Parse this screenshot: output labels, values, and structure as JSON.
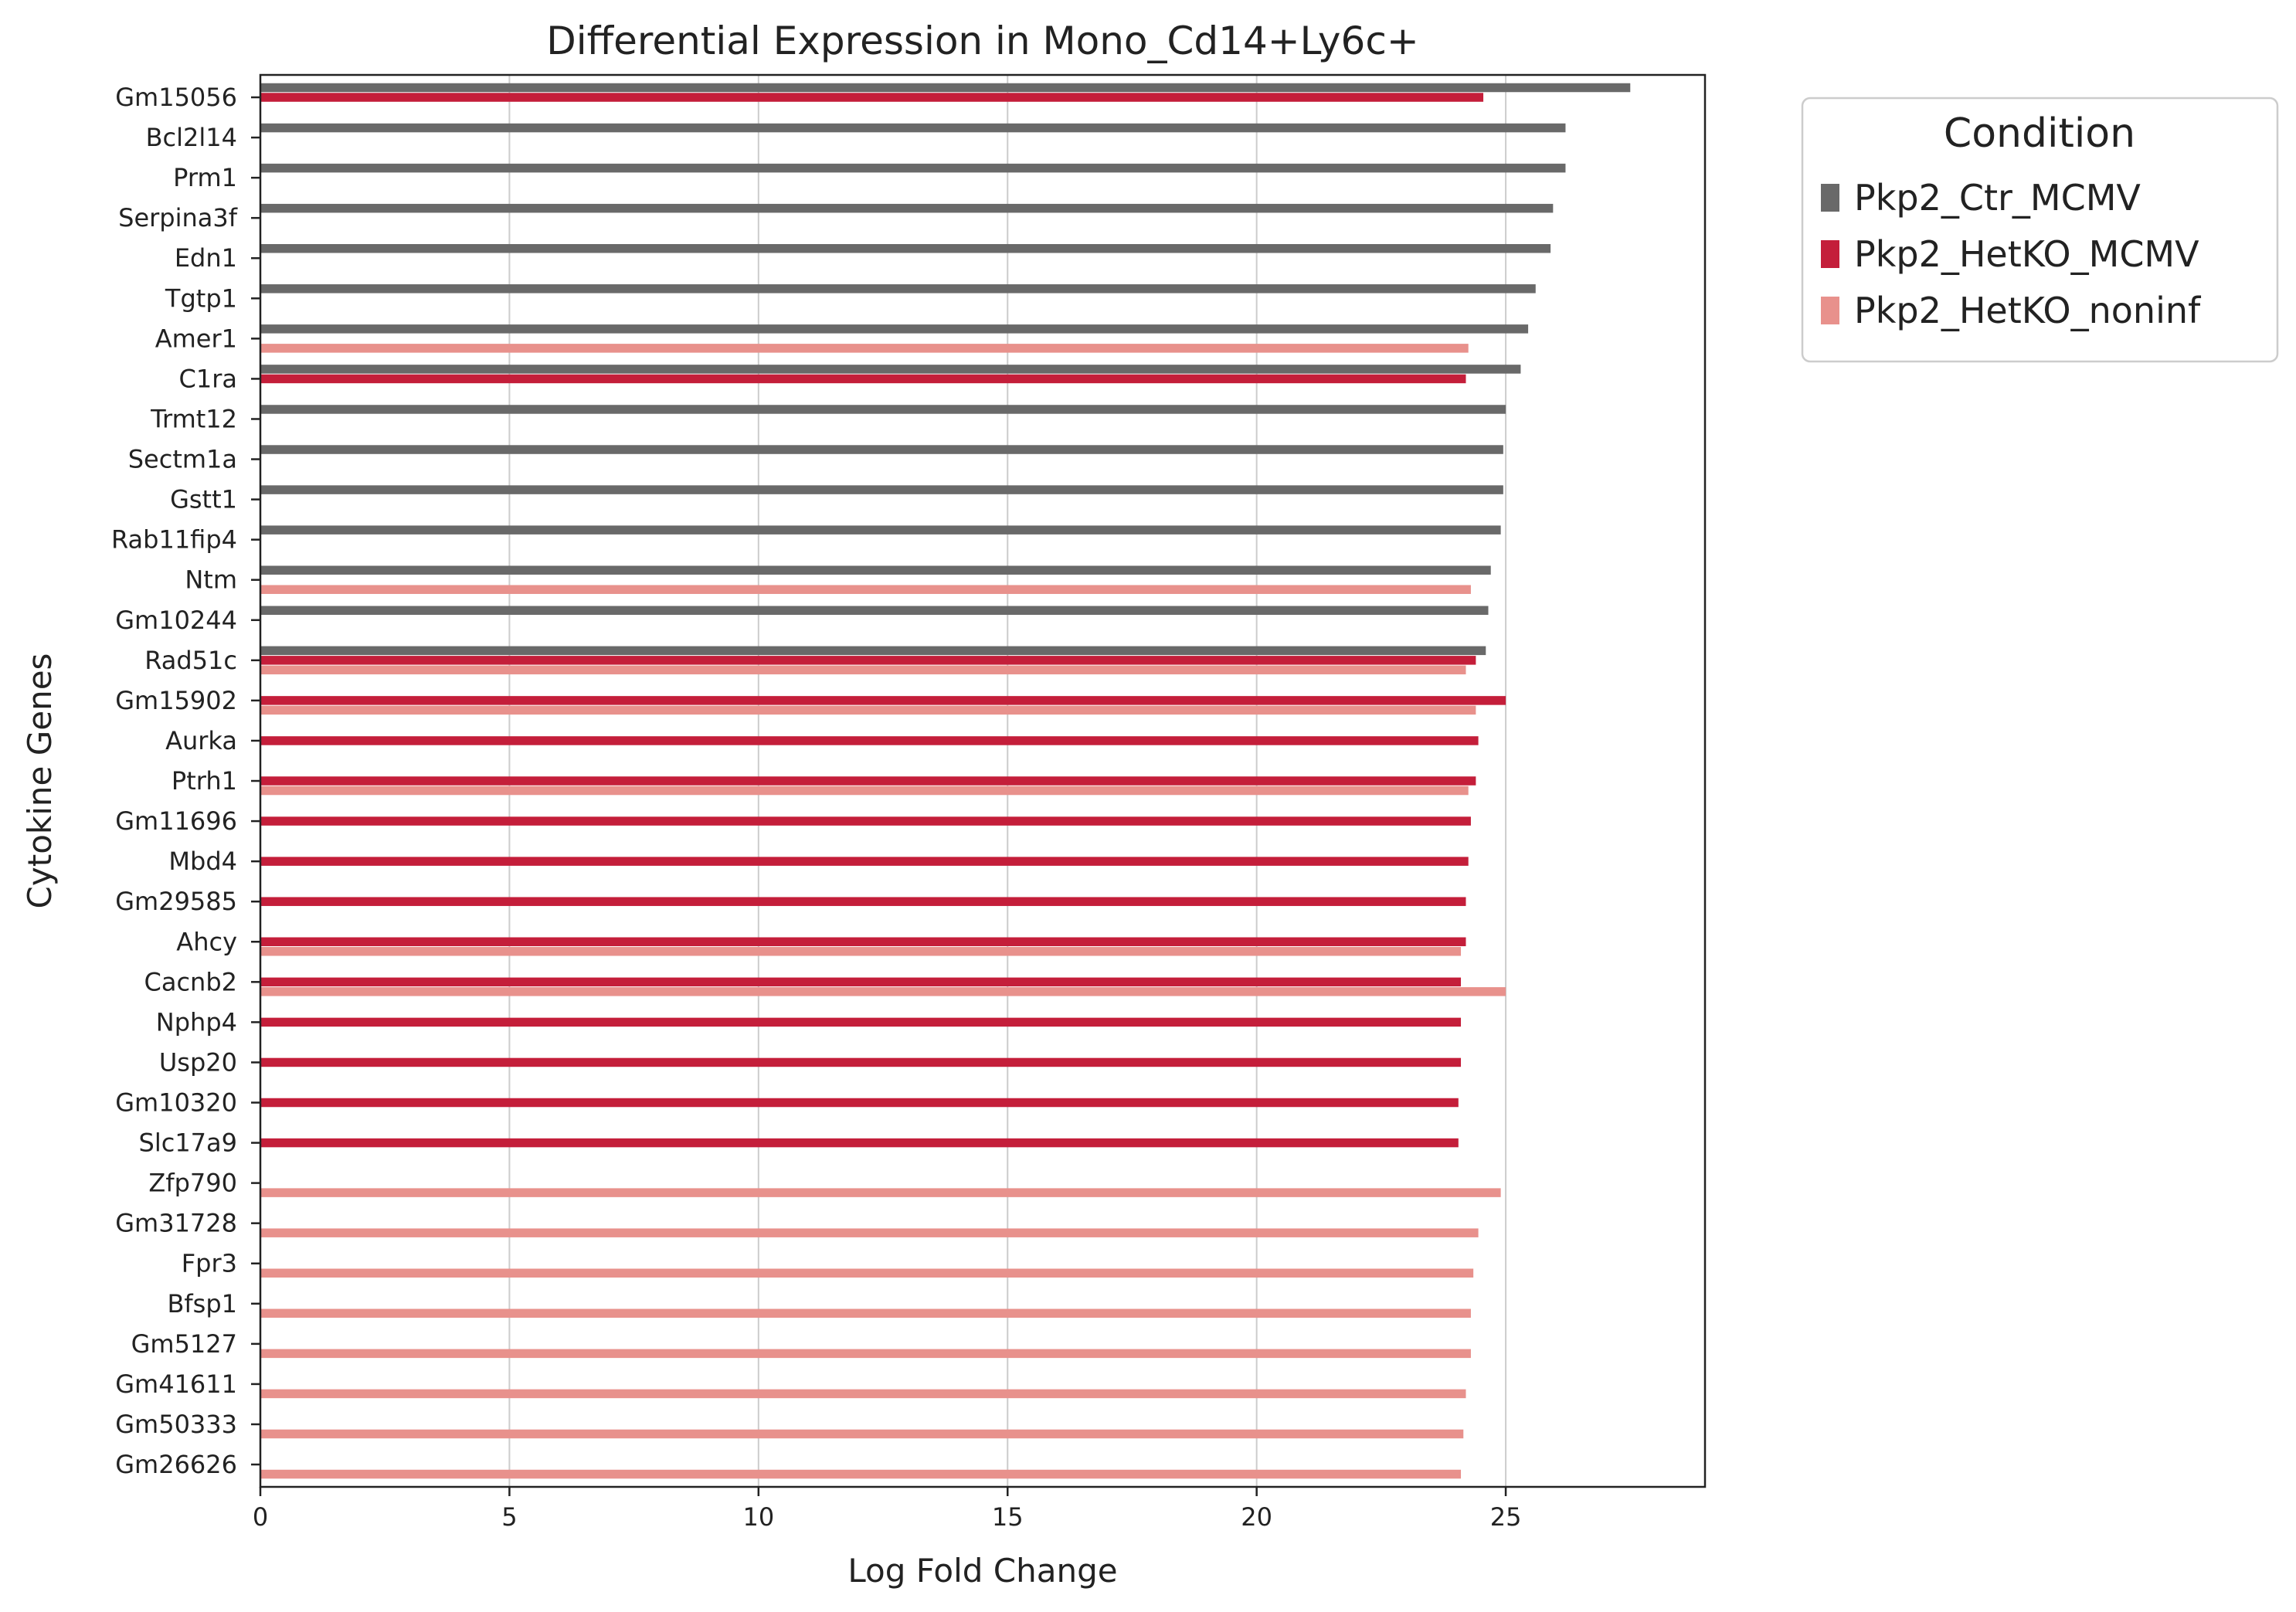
{
  "chart_data": {
    "type": "bar",
    "orientation": "horizontal",
    "title": "Differential Expression in Mono_Cd14+Ly6c+",
    "xlabel": "Log Fold Change",
    "ylabel": "Cytokine Genes",
    "xlim": [
      0,
      29
    ],
    "xticks": [
      0,
      5,
      10,
      15,
      20,
      25
    ],
    "grid": "vertical",
    "legend": {
      "title": "Condition",
      "placement": "outside-top-right"
    },
    "categories": [
      "Gm15056",
      "Bcl2l14",
      "Prm1",
      "Serpina3f",
      "Edn1",
      "Tgtp1",
      "Amer1",
      "C1ra",
      "Trmt12",
      "Sectm1a",
      "Gstt1",
      "Rab11fip4",
      "Ntm",
      "Gm10244",
      "Rad51c",
      "Gm15902",
      "Aurka",
      "Ptrh1",
      "Gm11696",
      "Mbd4",
      "Gm29585",
      "Ahcy",
      "Cacnb2",
      "Nphp4",
      "Usp20",
      "Gm10320",
      "Slc17a9",
      "Zfp790",
      "Gm31728",
      "Fpr3",
      "Bfsp1",
      "Gm5127",
      "Gm41611",
      "Gm50333",
      "Gm26626"
    ],
    "series": [
      {
        "name": "Pkp2_Ctr_MCMV",
        "color": "#696969",
        "values": [
          27.5,
          26.2,
          26.2,
          25.95,
          25.9,
          25.6,
          25.45,
          25.3,
          25.0,
          24.95,
          24.95,
          24.9,
          24.7,
          24.65,
          24.6,
          null,
          null,
          null,
          null,
          null,
          null,
          null,
          null,
          null,
          null,
          null,
          null,
          null,
          null,
          null,
          null,
          null,
          null,
          null,
          null
        ]
      },
      {
        "name": "Pkp2_HetKO_MCMV",
        "color": "#c41e3a",
        "values": [
          24.55,
          null,
          null,
          null,
          null,
          null,
          null,
          24.2,
          null,
          null,
          null,
          null,
          null,
          null,
          24.4,
          25.0,
          24.45,
          24.4,
          24.3,
          24.25,
          24.2,
          24.2,
          24.1,
          24.1,
          24.1,
          24.05,
          24.05,
          null,
          null,
          null,
          null,
          null,
          null,
          null,
          null
        ]
      },
      {
        "name": "Pkp2_HetKO_noninf",
        "color": "#e8918c",
        "values": [
          null,
          null,
          null,
          null,
          null,
          null,
          24.25,
          null,
          null,
          null,
          null,
          null,
          24.3,
          null,
          24.2,
          24.4,
          null,
          24.25,
          null,
          null,
          null,
          24.1,
          25.0,
          null,
          null,
          null,
          null,
          24.9,
          24.45,
          24.35,
          24.3,
          24.3,
          24.2,
          24.15,
          24.1
        ]
      }
    ]
  }
}
